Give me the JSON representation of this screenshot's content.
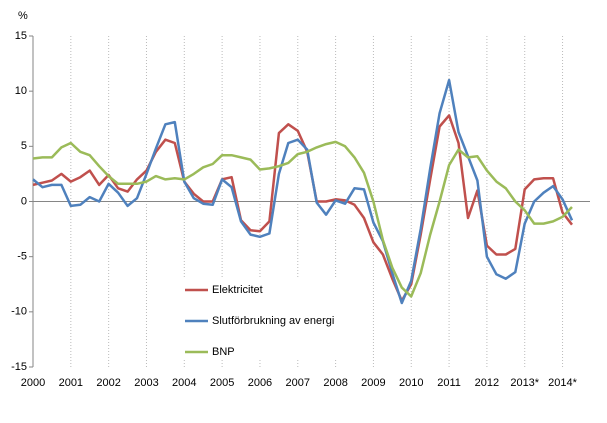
{
  "chart_data": {
    "type": "line",
    "y_label": "%",
    "categories": [
      "2000",
      null,
      null,
      null,
      "2001",
      null,
      null,
      null,
      "2002",
      null,
      null,
      null,
      "2003",
      null,
      null,
      null,
      "2004",
      null,
      null,
      null,
      "2005",
      null,
      null,
      null,
      "2006",
      null,
      null,
      null,
      "2007",
      null,
      null,
      null,
      "2008",
      null,
      null,
      null,
      "2009",
      null,
      null,
      null,
      "2010",
      null,
      null,
      null,
      "2011",
      null,
      null,
      null,
      "2012",
      null,
      null,
      null,
      "2013*",
      null,
      null,
      null,
      "2014*",
      null
    ],
    "series": [
      {
        "name": "Elektricitet",
        "color": "#c0504d",
        "values": [
          1.5,
          1.7,
          1.9,
          2.5,
          1.8,
          2.2,
          2.8,
          1.5,
          2.4,
          1.2,
          0.9,
          2.0,
          2.8,
          4.5,
          5.6,
          5.3,
          1.8,
          0.7,
          0.0,
          0.0,
          2.0,
          2.2,
          -1.7,
          -2.6,
          -2.7,
          -1.8,
          6.2,
          7.0,
          6.4,
          4.5,
          0.0,
          0.0,
          0.2,
          0.1,
          -0.3,
          -1.5,
          -3.7,
          -4.8,
          -7.0,
          -9.0,
          -7.5,
          -3.0,
          2.0,
          6.8,
          7.8,
          5.3,
          -1.5,
          1.0,
          -4.0,
          -4.8,
          -4.8,
          -4.3,
          1.1,
          2.0,
          2.1,
          2.1,
          -1.0,
          -2.1
        ]
      },
      {
        "name": "Slutförbrukning av energi",
        "color": "#4f81bd",
        "values": [
          2.0,
          1.3,
          1.5,
          1.5,
          -0.4,
          -0.3,
          0.4,
          0.0,
          1.6,
          0.8,
          -0.4,
          0.3,
          2.5,
          4.8,
          7.0,
          7.2,
          1.8,
          0.3,
          -0.2,
          -0.3,
          2.0,
          1.3,
          -1.8,
          -3.0,
          -3.2,
          -2.9,
          2.5,
          5.3,
          5.6,
          4.7,
          -0.1,
          -1.2,
          0.1,
          -0.2,
          1.2,
          1.1,
          -1.9,
          -3.6,
          -6.5,
          -9.2,
          -7.2,
          -2.5,
          3.0,
          8.0,
          11.0,
          6.3,
          4.1,
          1.9,
          -5.0,
          -6.6,
          -7.0,
          -6.4,
          -2.0,
          0.0,
          0.8,
          1.4,
          0.2,
          -1.7
        ]
      },
      {
        "name": "BNP",
        "color": "#9bbb59",
        "values": [
          3.9,
          4.0,
          4.0,
          4.9,
          5.3,
          4.5,
          4.2,
          3.2,
          2.3,
          1.6,
          1.6,
          1.6,
          1.8,
          2.3,
          2.0,
          2.1,
          2.0,
          2.5,
          3.1,
          3.4,
          4.2,
          4.2,
          4.0,
          3.8,
          2.9,
          3.0,
          3.2,
          3.5,
          4.3,
          4.5,
          4.9,
          5.2,
          5.4,
          5.0,
          4.0,
          2.6,
          0.0,
          -3.5,
          -6.0,
          -7.8,
          -8.6,
          -6.5,
          -3.0,
          0.0,
          3.3,
          4.7,
          4.0,
          4.1,
          2.8,
          1.8,
          1.2,
          0.0,
          -0.8,
          -2.0,
          -2.0,
          -1.8,
          -1.4,
          -0.5
        ]
      }
    ],
    "ylim": [
      -15,
      15
    ],
    "yticks": [
      -15,
      -10,
      -5,
      0,
      5,
      10,
      15
    ],
    "grid": false
  }
}
